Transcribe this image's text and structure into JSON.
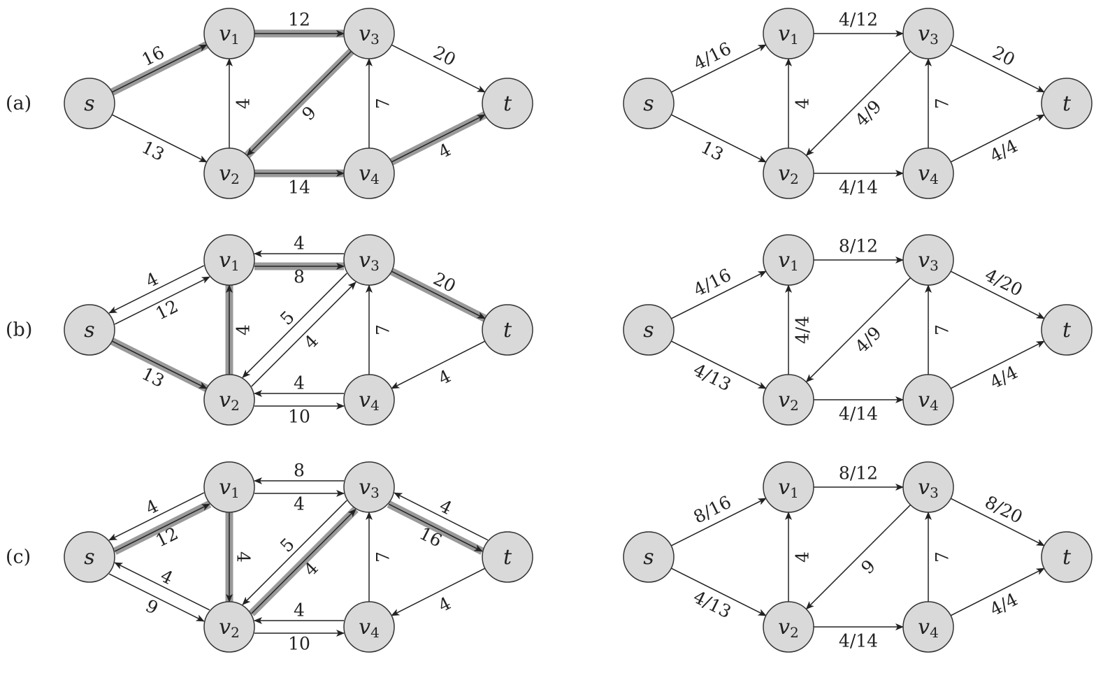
{
  "colors": {
    "node_fill": "#d9d9d9",
    "node_stroke": "#333333",
    "edge": "#222222",
    "highlight": "#9a9a9a"
  },
  "nodes": [
    {
      "id": "s",
      "label": "s",
      "sub": ""
    },
    {
      "id": "v1",
      "label": "v",
      "sub": "1"
    },
    {
      "id": "v2",
      "label": "v",
      "sub": "2"
    },
    {
      "id": "v3",
      "label": "v",
      "sub": "3"
    },
    {
      "id": "v4",
      "label": "v",
      "sub": "4"
    },
    {
      "id": "t",
      "label": "t",
      "sub": ""
    }
  ],
  "rows": [
    {
      "label": "(a)",
      "residual": [
        {
          "from": "s",
          "to": "v1",
          "label": "16",
          "hl": true
        },
        {
          "from": "s",
          "to": "v2",
          "label": "13"
        },
        {
          "from": "v1",
          "to": "v3",
          "label": "12",
          "hl": true
        },
        {
          "from": "v2",
          "to": "v1",
          "label": "4"
        },
        {
          "from": "v3",
          "to": "v2",
          "label": "9",
          "hl": true
        },
        {
          "from": "v2",
          "to": "v4",
          "label": "14",
          "hl": true
        },
        {
          "from": "v4",
          "to": "v3",
          "label": "7"
        },
        {
          "from": "v3",
          "to": "t",
          "label": "20"
        },
        {
          "from": "v4",
          "to": "t",
          "label": "4",
          "hl": true
        }
      ],
      "flow": [
        {
          "from": "s",
          "to": "v1",
          "label": "4/16"
        },
        {
          "from": "s",
          "to": "v2",
          "label": "13"
        },
        {
          "from": "v1",
          "to": "v3",
          "label": "4/12"
        },
        {
          "from": "v2",
          "to": "v1",
          "label": "4"
        },
        {
          "from": "v3",
          "to": "v2",
          "label": "4/9"
        },
        {
          "from": "v2",
          "to": "v4",
          "label": "4/14"
        },
        {
          "from": "v4",
          "to": "v3",
          "label": "7"
        },
        {
          "from": "v3",
          "to": "t",
          "label": "20"
        },
        {
          "from": "v4",
          "to": "t",
          "label": "4/4"
        }
      ]
    },
    {
      "label": "(b)",
      "residual": [
        {
          "from": "s",
          "to": "v1",
          "label": "12",
          "pair": 1
        },
        {
          "from": "v1",
          "to": "s",
          "label": "4",
          "pair": 1
        },
        {
          "from": "s",
          "to": "v2",
          "label": "13",
          "hl": true
        },
        {
          "from": "v1",
          "to": "v3",
          "label": "8",
          "pair": 1,
          "hl": true
        },
        {
          "from": "v3",
          "to": "v1",
          "label": "4",
          "pair": 1
        },
        {
          "from": "v2",
          "to": "v1",
          "label": "4",
          "hl": true
        },
        {
          "from": "v2",
          "to": "v3",
          "label": "4",
          "pair": 1
        },
        {
          "from": "v3",
          "to": "v2",
          "label": "5",
          "pair": 1
        },
        {
          "from": "v2",
          "to": "v4",
          "label": "10",
          "pair": 1
        },
        {
          "from": "v4",
          "to": "v2",
          "label": "4",
          "pair": 1
        },
        {
          "from": "v4",
          "to": "v3",
          "label": "7"
        },
        {
          "from": "v3",
          "to": "t",
          "label": "20",
          "hl": true
        },
        {
          "from": "t",
          "to": "v4",
          "label": "4"
        }
      ],
      "flow": [
        {
          "from": "s",
          "to": "v1",
          "label": "4/16"
        },
        {
          "from": "s",
          "to": "v2",
          "label": "4/13"
        },
        {
          "from": "v1",
          "to": "v3",
          "label": "8/12"
        },
        {
          "from": "v2",
          "to": "v1",
          "label": "4/4"
        },
        {
          "from": "v3",
          "to": "v2",
          "label": "4/9"
        },
        {
          "from": "v2",
          "to": "v4",
          "label": "4/14"
        },
        {
          "from": "v4",
          "to": "v3",
          "label": "7"
        },
        {
          "from": "v3",
          "to": "t",
          "label": "4/20"
        },
        {
          "from": "v4",
          "to": "t",
          "label": "4/4"
        }
      ]
    },
    {
      "label": "(c)",
      "residual": [
        {
          "from": "s",
          "to": "v1",
          "label": "12",
          "pair": 1,
          "hl": true
        },
        {
          "from": "v1",
          "to": "s",
          "label": "4",
          "pair": 1
        },
        {
          "from": "s",
          "to": "v2",
          "label": "9",
          "pair": 1
        },
        {
          "from": "v2",
          "to": "s",
          "label": "4",
          "pair": 1
        },
        {
          "from": "v1",
          "to": "v3",
          "label": "4",
          "pair": 1
        },
        {
          "from": "v3",
          "to": "v1",
          "label": "8",
          "pair": 1
        },
        {
          "from": "v1",
          "to": "v2",
          "label": "4",
          "hl": true
        },
        {
          "from": "v2",
          "to": "v3",
          "label": "4",
          "pair": 1,
          "hl": true
        },
        {
          "from": "v3",
          "to": "v2",
          "label": "5",
          "pair": 1
        },
        {
          "from": "v2",
          "to": "v4",
          "label": "10",
          "pair": 1
        },
        {
          "from": "v4",
          "to": "v2",
          "label": "4",
          "pair": 1
        },
        {
          "from": "v4",
          "to": "v3",
          "label": "7"
        },
        {
          "from": "v3",
          "to": "t",
          "label": "16",
          "pair": 1,
          "hl": true
        },
        {
          "from": "t",
          "to": "v3",
          "label": "4",
          "pair": 1
        },
        {
          "from": "t",
          "to": "v4",
          "label": "4"
        }
      ],
      "flow": [
        {
          "from": "s",
          "to": "v1",
          "label": "8/16"
        },
        {
          "from": "s",
          "to": "v2",
          "label": "4/13"
        },
        {
          "from": "v1",
          "to": "v3",
          "label": "8/12"
        },
        {
          "from": "v2",
          "to": "v1",
          "label": "4"
        },
        {
          "from": "v3",
          "to": "v2",
          "label": "9"
        },
        {
          "from": "v2",
          "to": "v4",
          "label": "4/14"
        },
        {
          "from": "v4",
          "to": "v3",
          "label": "7"
        },
        {
          "from": "v3",
          "to": "t",
          "label": "8/20"
        },
        {
          "from": "v4",
          "to": "t",
          "label": "4/4"
        }
      ]
    }
  ]
}
